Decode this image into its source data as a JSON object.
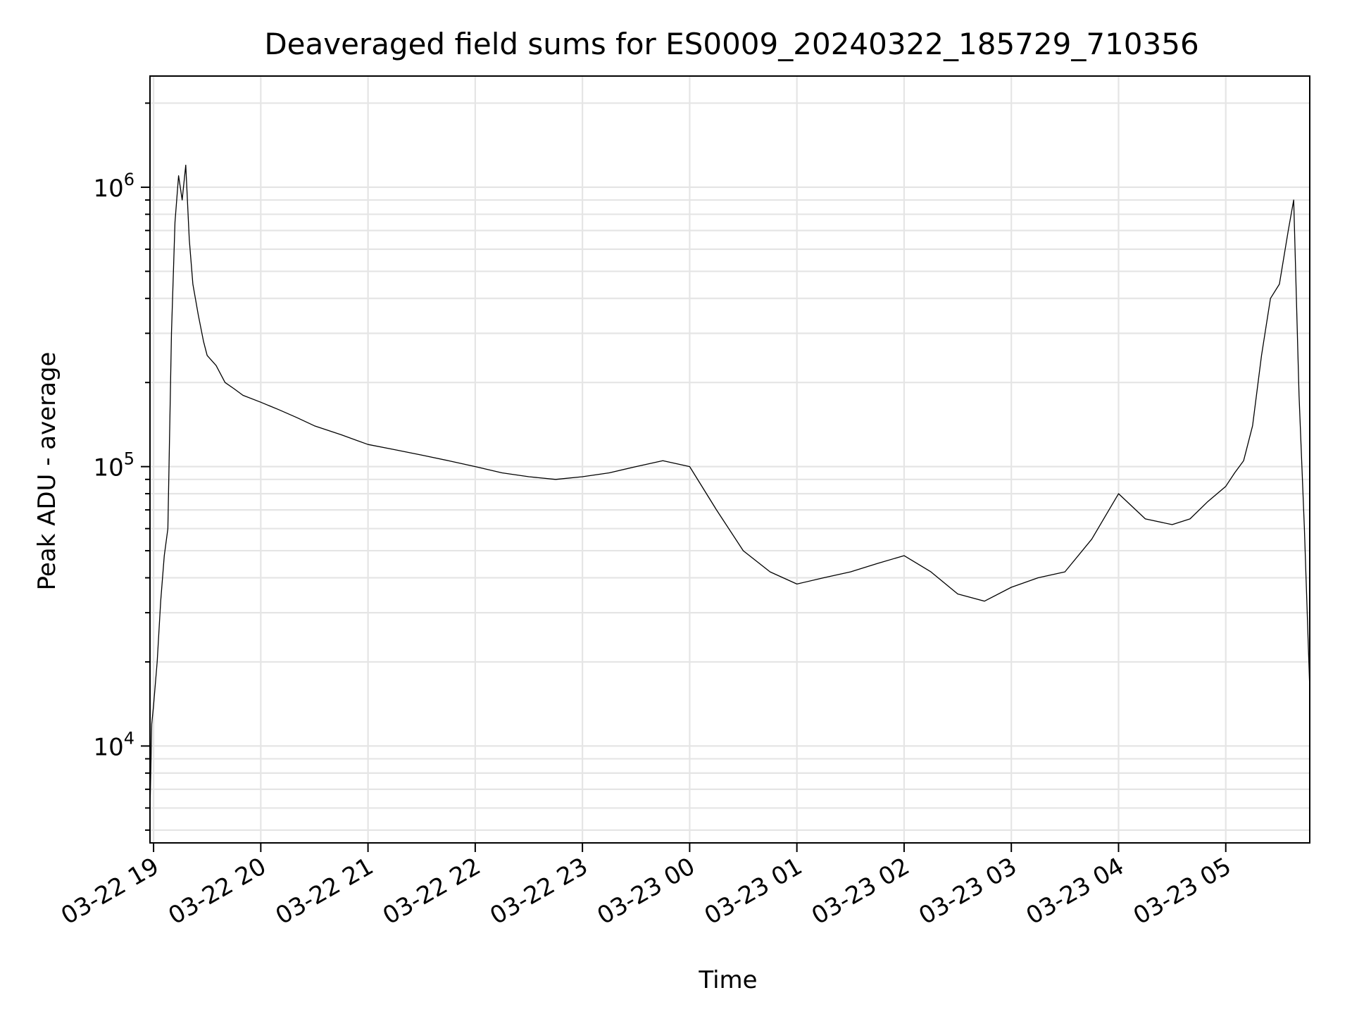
{
  "chart_data": {
    "type": "line",
    "title": "Deaveraged field sums for ES0009_20240322_185729_710356",
    "xlabel": "Time",
    "ylabel": "Peak ADU - average",
    "yscale": "log",
    "ylim": [
      4500,
      2500000
    ],
    "xlim": [
      "2024-03-22T18:58",
      "2024-03-23T05:47"
    ],
    "grid": true,
    "grid_minor_y": true,
    "line_color": "#000000",
    "x_ticks": [
      "2024-03-22T19:00",
      "2024-03-22T20:00",
      "2024-03-22T21:00",
      "2024-03-22T22:00",
      "2024-03-22T23:00",
      "2024-03-23T00:00",
      "2024-03-23T01:00",
      "2024-03-23T02:00",
      "2024-03-23T03:00",
      "2024-03-23T04:00",
      "2024-03-23T05:00"
    ],
    "x_tick_labels": [
      "03-22 19",
      "03-22 20",
      "03-22 21",
      "03-22 22",
      "03-22 23",
      "03-23 00",
      "03-23 01",
      "03-23 02",
      "03-23 03",
      "03-23 04",
      "03-23 05"
    ],
    "y_ticks": [
      10000,
      100000,
      1000000
    ],
    "y_tick_labels": [
      {
        "base": "10",
        "exp": "4"
      },
      {
        "base": "10",
        "exp": "5"
      },
      {
        "base": "10",
        "exp": "6"
      }
    ],
    "series": [
      {
        "x": [
          "2024-03-22T18:58",
          "2024-03-22T18:59",
          "2024-03-22T19:00",
          "2024-03-22T19:02",
          "2024-03-22T19:04",
          "2024-03-22T19:06",
          "2024-03-22T19:08",
          "2024-03-22T19:10",
          "2024-03-22T19:12",
          "2024-03-22T19:14",
          "2024-03-22T19:16",
          "2024-03-22T19:18",
          "2024-03-22T19:20",
          "2024-03-22T19:22",
          "2024-03-22T19:25",
          "2024-03-22T19:28",
          "2024-03-22T19:30",
          "2024-03-22T19:35",
          "2024-03-22T19:40",
          "2024-03-22T19:45",
          "2024-03-22T19:50",
          "2024-03-22T20:00",
          "2024-03-22T20:10",
          "2024-03-22T20:20",
          "2024-03-22T20:30",
          "2024-03-22T20:45",
          "2024-03-22T21:00",
          "2024-03-22T21:15",
          "2024-03-22T21:30",
          "2024-03-22T21:45",
          "2024-03-22T22:00",
          "2024-03-22T22:15",
          "2024-03-22T22:30",
          "2024-03-22T22:45",
          "2024-03-22T23:00",
          "2024-03-22T23:15",
          "2024-03-22T23:30",
          "2024-03-22T23:45",
          "2024-03-23T00:00",
          "2024-03-23T00:15",
          "2024-03-23T00:30",
          "2024-03-23T00:45",
          "2024-03-23T01:00",
          "2024-03-23T01:15",
          "2024-03-23T01:30",
          "2024-03-23T01:45",
          "2024-03-23T02:00",
          "2024-03-23T02:15",
          "2024-03-23T02:30",
          "2024-03-23T02:45",
          "2024-03-23T03:00",
          "2024-03-23T03:15",
          "2024-03-23T03:30",
          "2024-03-23T03:45",
          "2024-03-23T04:00",
          "2024-03-23T04:15",
          "2024-03-23T04:30",
          "2024-03-23T04:40",
          "2024-03-23T04:50",
          "2024-03-23T05:00",
          "2024-03-23T05:05",
          "2024-03-23T05:10",
          "2024-03-23T05:15",
          "2024-03-23T05:20",
          "2024-03-23T05:25",
          "2024-03-23T05:30",
          "2024-03-23T05:35",
          "2024-03-23T05:38",
          "2024-03-23T05:41",
          "2024-03-23T05:44",
          "2024-03-23T05:47"
        ],
        "y": [
          5800,
          12000,
          14000,
          20000,
          33000,
          48000,
          60000,
          300000,
          750000,
          1100000,
          900000,
          1200000,
          650000,
          450000,
          350000,
          280000,
          250000,
          230000,
          200000,
          190000,
          180000,
          170000,
          160000,
          150000,
          140000,
          130000,
          120000,
          115000,
          110000,
          105000,
          100000,
          95000,
          92000,
          90000,
          92000,
          95000,
          100000,
          105000,
          100000,
          70000,
          50000,
          42000,
          38000,
          40000,
          42000,
          45000,
          48000,
          42000,
          35000,
          33000,
          37000,
          40000,
          42000,
          55000,
          80000,
          65000,
          62000,
          65000,
          75000,
          85000,
          95000,
          105000,
          140000,
          250000,
          400000,
          450000,
          700000,
          900000,
          180000,
          60000,
          16000
        ]
      }
    ]
  }
}
